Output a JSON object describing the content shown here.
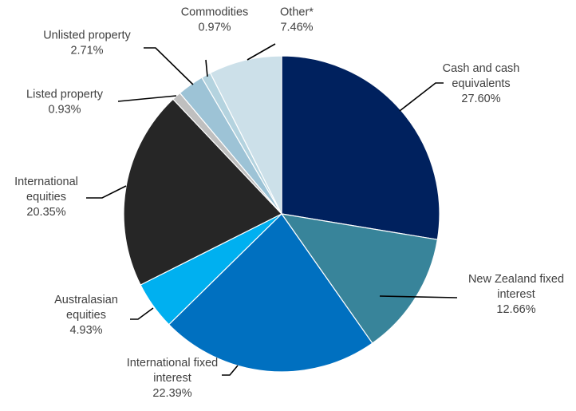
{
  "chart_data": {
    "type": "pie",
    "title": "",
    "start_angle_deg": 0,
    "direction": "clockwise",
    "slices": [
      {
        "id": "cash",
        "label_lines": [
          "Cash and cash",
          "equivalents"
        ],
        "value_text": "27.60%",
        "value": 27.6,
        "color": "#00215E"
      },
      {
        "id": "nz-fixed",
        "label_lines": [
          "New Zealand fixed",
          "interest"
        ],
        "value_text": "12.66%",
        "value": 12.66,
        "color": "#38849A"
      },
      {
        "id": "intl-fixed",
        "label_lines": [
          "International fixed",
          "interest"
        ],
        "value_text": "22.39%",
        "value": 22.39,
        "color": "#0070C0"
      },
      {
        "id": "aus-equities",
        "label_lines": [
          "Australasian",
          "equities"
        ],
        "value_text": "4.93%",
        "value": 4.93,
        "color": "#00B0F0"
      },
      {
        "id": "intl-equities",
        "label_lines": [
          "International",
          "equities"
        ],
        "value_text": "20.35%",
        "value": 20.35,
        "color": "#262626"
      },
      {
        "id": "listed-property",
        "label_lines": [
          "Listed property"
        ],
        "value_text": "0.93%",
        "value": 0.93,
        "color": "#BFBFBF"
      },
      {
        "id": "unlisted-property",
        "label_lines": [
          "Unlisted property"
        ],
        "value_text": "2.71%",
        "value": 2.71,
        "color": "#9DC3D6"
      },
      {
        "id": "commodities",
        "label_lines": [
          "Commodities"
        ],
        "value_text": "0.97%",
        "value": 0.97,
        "color": "#B4D3DF"
      },
      {
        "id": "other",
        "label_lines": [
          "Other*"
        ],
        "value_text": "7.46%",
        "value": 7.46,
        "color": "#CCE0E9"
      }
    ]
  }
}
